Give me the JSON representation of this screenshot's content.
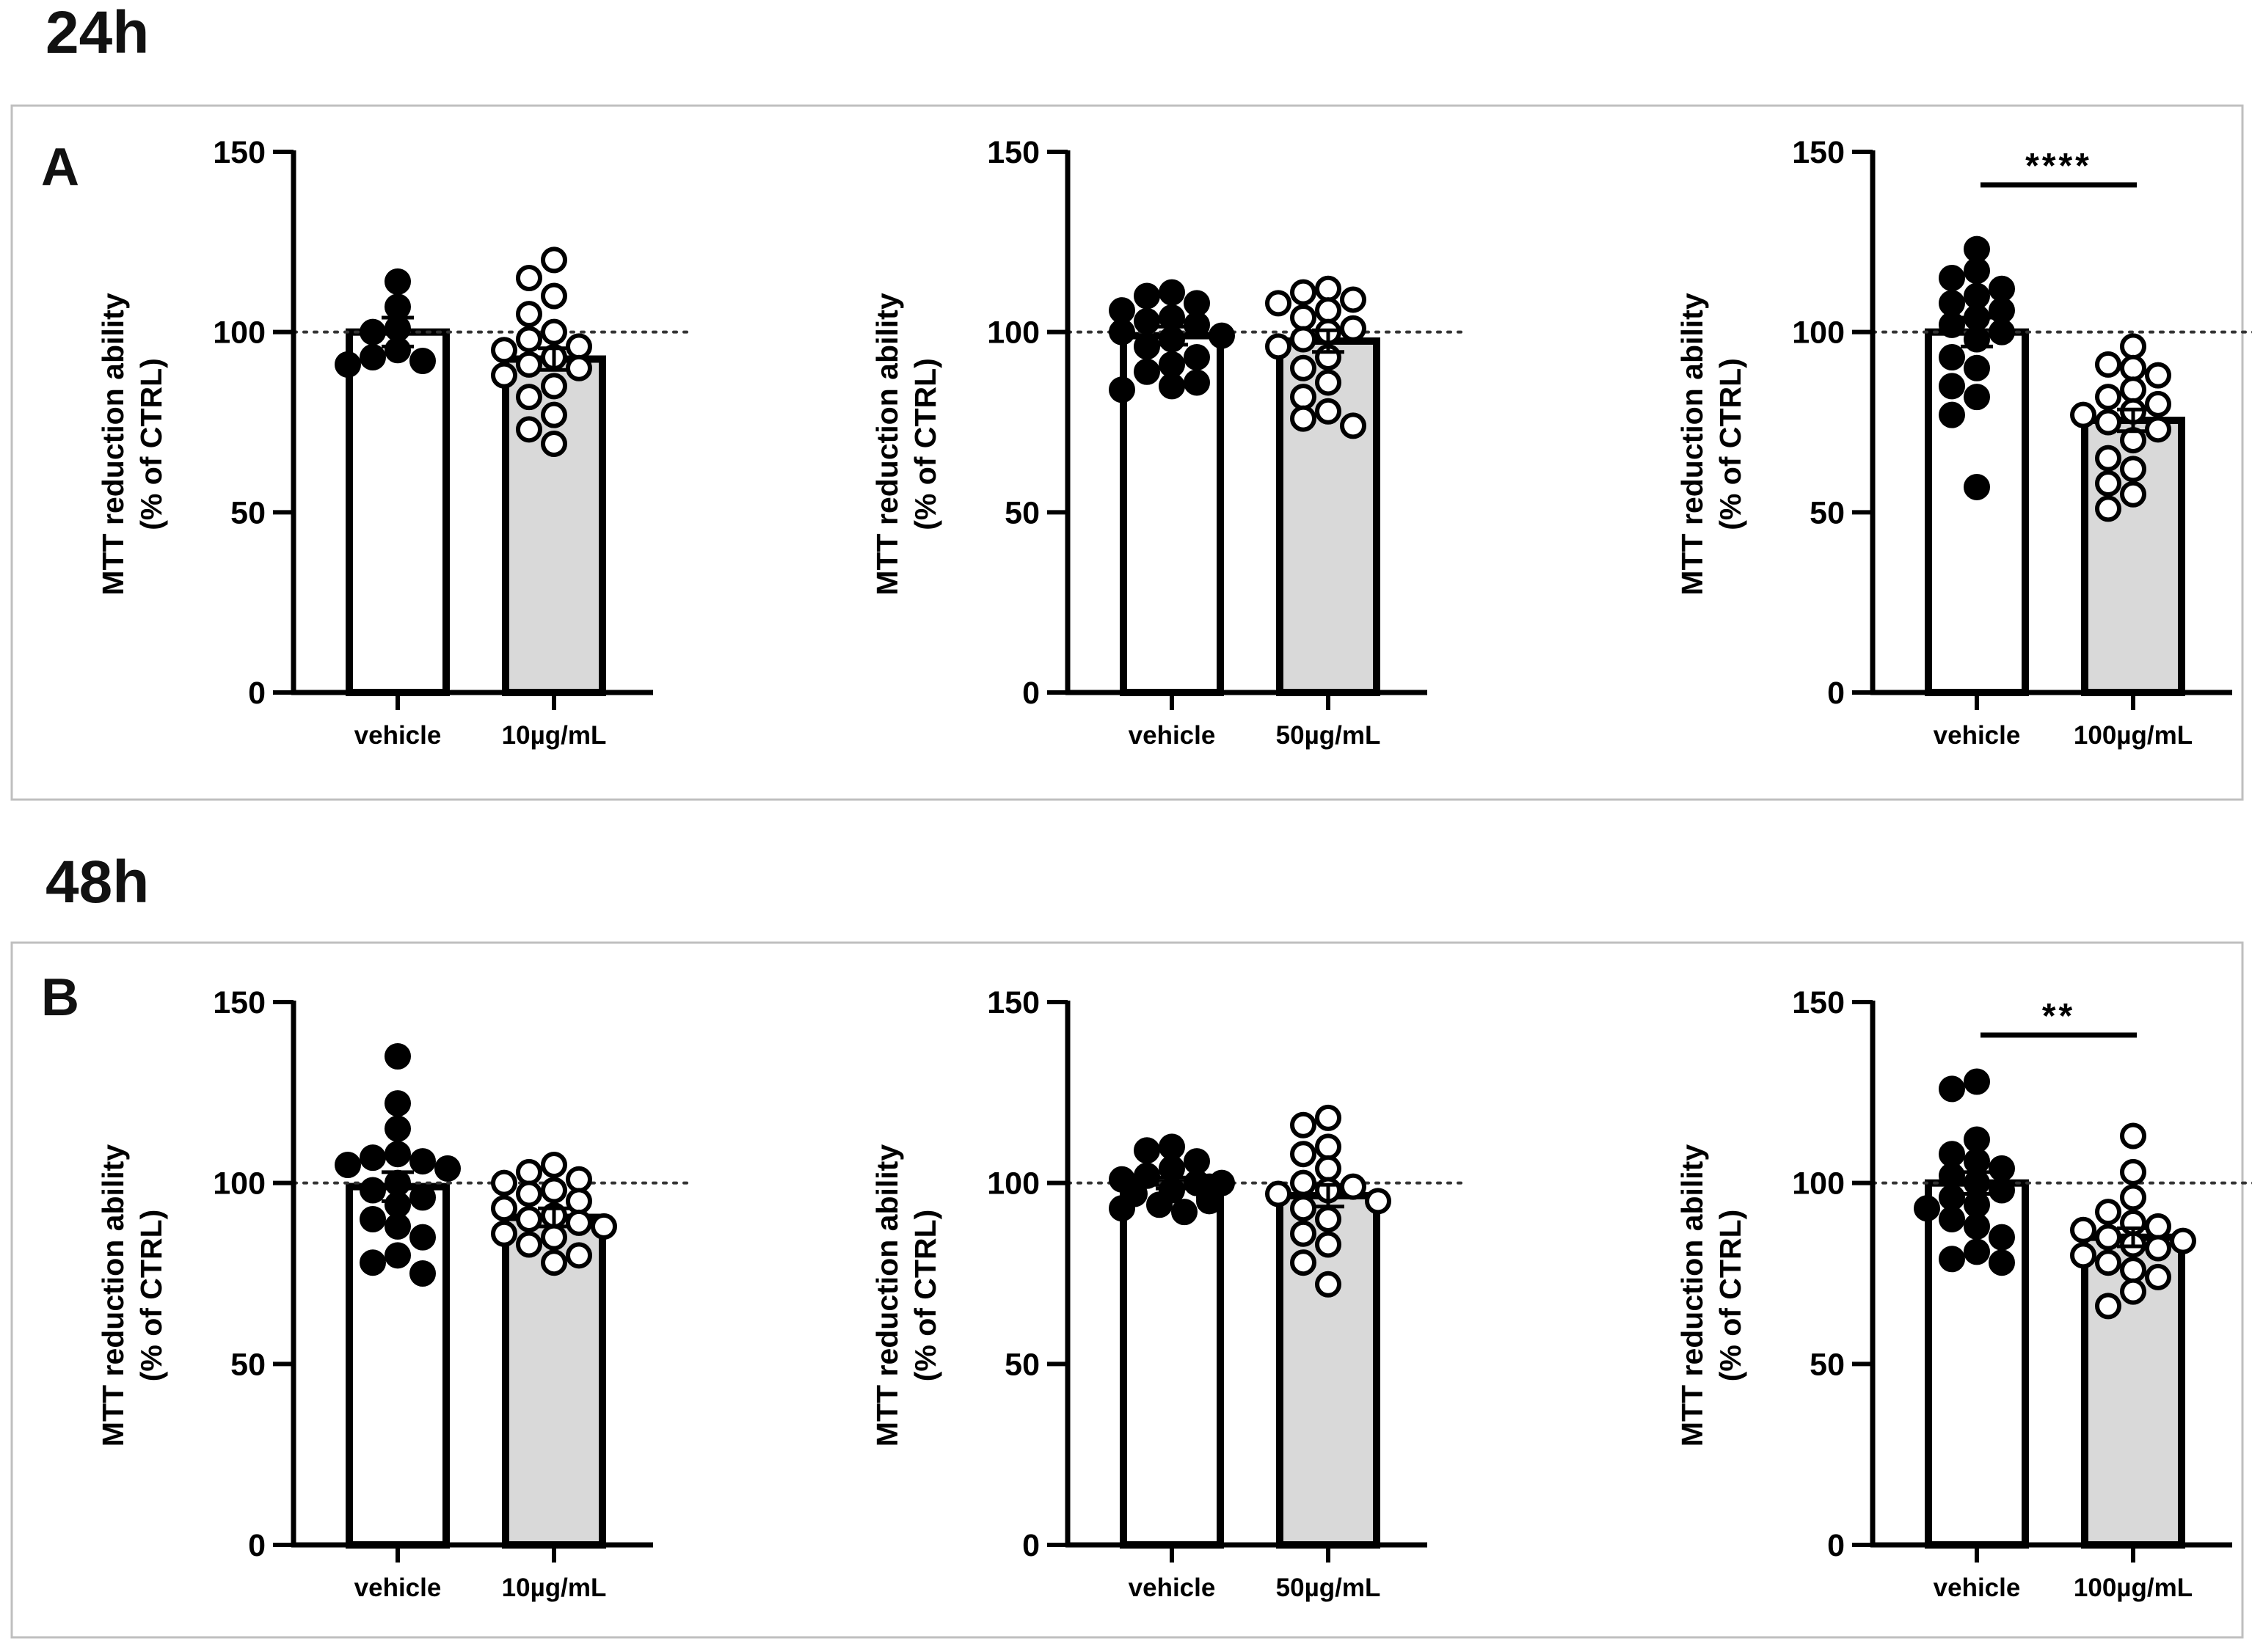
{
  "sections": [
    {
      "title": "24h",
      "letter": "A",
      "charts": [
        {
          "type": "bar",
          "categories": [
            "vehicle",
            "10µg/mL"
          ],
          "ylabel_line1": "MTT reduction ability",
          "ylabel_line2": "(% of CTRL)",
          "ylim": [
            0,
            150
          ],
          "yticks": [
            0,
            50,
            100,
            150
          ],
          "reference_line": 100,
          "significance": "",
          "series": [
            {
              "mean": 100,
              "sem": 4,
              "fill": "#ffffff",
              "marker": "filled",
              "points": [
                114,
                107,
                101,
                100,
                95,
                93,
                92,
                91
              ]
            },
            {
              "mean": 92.5,
              "sem": 3,
              "fill": "#d9d9d9",
              "marker": "open",
              "points": [
                120,
                115,
                110,
                105,
                100,
                98,
                96,
                95,
                93,
                91,
                90,
                88,
                85,
                82,
                77,
                73,
                69
              ]
            }
          ]
        },
        {
          "type": "bar",
          "categories": [
            "vehicle",
            "50µg/mL"
          ],
          "ylabel_line1": "MTT reduction ability",
          "ylabel_line2": "(% of CTRL)",
          "ylim": [
            0,
            150
          ],
          "yticks": [
            0,
            50,
            100,
            150
          ],
          "reference_line": 100,
          "significance": "",
          "series": [
            {
              "mean": 99,
              "sem": 2.5,
              "fill": "#ffffff",
              "marker": "filled",
              "points": [
                111,
                110,
                108,
                106,
                104,
                103,
                102,
                100,
                99,
                98,
                96,
                93,
                91,
                89,
                86,
                85,
                84
              ]
            },
            {
              "mean": 97.5,
              "sem": 3,
              "fill": "#d9d9d9",
              "marker": "open",
              "points": [
                112,
                111,
                109,
                108,
                106,
                104,
                101,
                100,
                98,
                96,
                93,
                90,
                86,
                82,
                78,
                76,
                74
              ]
            }
          ]
        },
        {
          "type": "bar",
          "categories": [
            "vehicle",
            "100µg/mL"
          ],
          "ylabel_line1": "MTT reduction ability",
          "ylabel_line2": "(% of CTRL)",
          "ylim": [
            0,
            150
          ],
          "yticks": [
            0,
            50,
            100,
            150
          ],
          "reference_line": 100,
          "significance": "****",
          "series": [
            {
              "mean": 100,
              "sem": 4,
              "fill": "#ffffff",
              "marker": "filled",
              "points": [
                123,
                117,
                115,
                112,
                110,
                108,
                106,
                104,
                102,
                100,
                98,
                93,
                90,
                85,
                82,
                77,
                57
              ]
            },
            {
              "mean": 75.5,
              "sem": 3,
              "fill": "#d9d9d9",
              "marker": "open",
              "points": [
                96,
                91,
                90,
                88,
                84,
                82,
                80,
                78,
                77,
                75,
                73,
                70,
                65,
                62,
                58,
                55,
                51
              ]
            }
          ]
        }
      ]
    },
    {
      "title": "48h",
      "letter": "B",
      "charts": [
        {
          "type": "bar",
          "categories": [
            "vehicle",
            "10µg/mL"
          ],
          "ylabel_line1": "MTT reduction ability",
          "ylabel_line2": "(% of CTRL)",
          "ylim": [
            0,
            150
          ],
          "yticks": [
            0,
            50,
            100,
            150
          ],
          "reference_line": 100,
          "significance": "",
          "series": [
            {
              "mean": 99,
              "sem": 4,
              "fill": "#ffffff",
              "marker": "filled",
              "points": [
                135,
                122,
                115,
                108,
                107,
                106,
                105,
                104,
                100,
                98,
                96,
                94,
                90,
                88,
                85,
                80,
                78,
                75
              ]
            },
            {
              "mean": 90.5,
              "sem": 2.5,
              "fill": "#d9d9d9",
              "marker": "open",
              "points": [
                105,
                103,
                101,
                100,
                98,
                97,
                95,
                93,
                91,
                90,
                89,
                88,
                86,
                85,
                83,
                80,
                78
              ]
            }
          ]
        },
        {
          "type": "bar",
          "categories": [
            "vehicle",
            "50µg/mL"
          ],
          "ylabel_line1": "MTT reduction ability",
          "ylabel_line2": "(% of CTRL)",
          "ylim": [
            0,
            150
          ],
          "yticks": [
            0,
            50,
            100,
            150
          ],
          "reference_line": 100,
          "significance": "",
          "series": [
            {
              "mean": 100,
              "sem": 1.5,
              "fill": "#ffffff",
              "marker": "filled",
              "points": [
                110,
                109,
                106,
                104,
                102,
                101,
                100,
                100,
                99,
                98,
                97,
                96,
                95,
                94,
                93,
                92
              ]
            },
            {
              "mean": 96.5,
              "sem": 3,
              "fill": "#d9d9d9",
              "marker": "open",
              "points": [
                118,
                116,
                110,
                108,
                104,
                100,
                99,
                98,
                97,
                95,
                93,
                90,
                86,
                83,
                78,
                72
              ]
            }
          ]
        },
        {
          "type": "bar",
          "categories": [
            "vehicle",
            "100µg/mL"
          ],
          "ylabel_line1": "MTT reduction ability",
          "ylabel_line2": "(% of CTRL)",
          "ylim": [
            0,
            150
          ],
          "yticks": [
            0,
            50,
            100,
            150
          ],
          "reference_line": 100,
          "significance": "**",
          "series": [
            {
              "mean": 100,
              "sem": 3,
              "fill": "#ffffff",
              "marker": "filled",
              "points": [
                128,
                126,
                112,
                108,
                106,
                104,
                102,
                100,
                98,
                96,
                94,
                93,
                90,
                88,
                85,
                81,
                79,
                78
              ]
            },
            {
              "mean": 85,
              "sem": 2.5,
              "fill": "#d9d9d9",
              "marker": "open",
              "points": [
                113,
                103,
                96,
                92,
                89,
                88,
                87,
                85,
                84,
                83,
                82,
                80,
                78,
                76,
                74,
                70,
                66
              ]
            }
          ]
        }
      ]
    }
  ]
}
